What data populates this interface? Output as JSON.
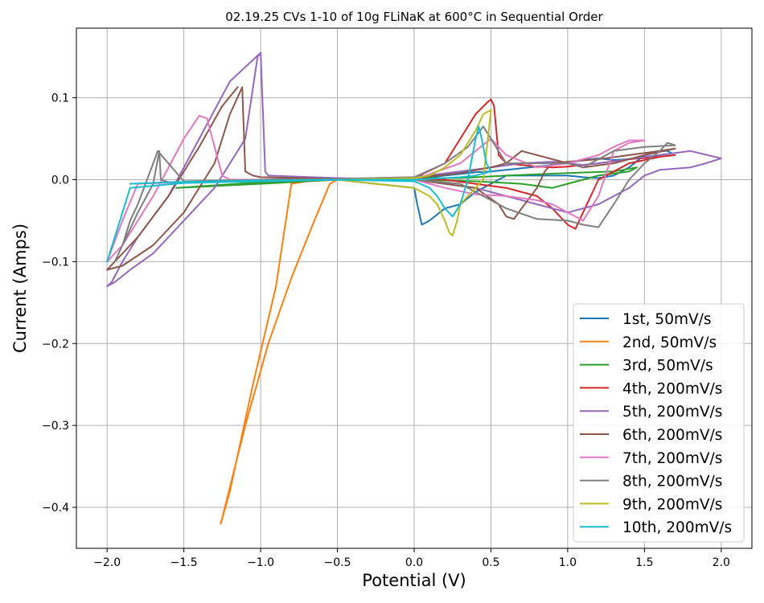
{
  "chart_data": {
    "type": "line",
    "title": "02.19.25 CVs 1-10 of 10g FLiNaK at 600°C in Sequential Order",
    "xlabel": "Potential (V)",
    "ylabel": "Current (Amps)",
    "xlim": [
      -2.2,
      2.2
    ],
    "ylim": [
      -0.45,
      0.185
    ],
    "xticks": [
      -2.0,
      -1.5,
      -1.0,
      -0.5,
      0.0,
      0.5,
      1.0,
      1.5,
      2.0
    ],
    "xtick_labels": [
      "−2.0",
      "−1.5",
      "−1.0",
      "−0.5",
      "0.0",
      "0.5",
      "1.0",
      "1.5",
      "2.0"
    ],
    "yticks": [
      0.1,
      0.0,
      -0.1,
      -0.2,
      -0.3,
      -0.4
    ],
    "ytick_labels": [
      "0.1",
      "0.0",
      "−0.1",
      "−0.2",
      "−0.3",
      "−0.4"
    ],
    "grid": true,
    "legend_position": "lower-right",
    "series": [
      {
        "name": "1st, 50mV/s",
        "color": "#1f77b4",
        "x": [
          -0.5,
          0.0,
          0.02,
          0.05,
          0.1,
          0.2,
          0.3,
          0.4,
          0.6,
          0.8,
          1.0,
          1.1,
          1.2,
          1.3,
          1.4,
          1.5,
          1.6,
          1.65,
          1.68,
          1.6,
          1.5,
          1.4,
          1.3,
          1.2,
          1.1,
          1.0,
          0.9,
          0.8,
          0.7,
          0.6,
          0.5,
          0.4,
          0.3,
          0.2,
          0.1,
          0.0,
          -0.3,
          -0.5
        ],
        "y": [
          0.0,
          -0.01,
          -0.03,
          -0.055,
          -0.05,
          -0.035,
          -0.03,
          -0.015,
          0.005,
          0.005,
          0.005,
          0.003,
          0.002,
          0.005,
          0.015,
          0.03,
          0.035,
          0.035,
          0.032,
          0.03,
          0.028,
          0.025,
          0.024,
          0.026,
          0.024,
          0.02,
          0.018,
          0.016,
          0.014,
          0.012,
          0.01,
          0.009,
          0.007,
          0.005,
          0.003,
          0.002,
          0.001,
          0.0
        ]
      },
      {
        "name": "2nd, 50mV/s",
        "color": "#ff7f0e",
        "x": [
          -0.5,
          -0.55,
          -0.65,
          -0.8,
          -0.95,
          -1.1,
          -1.26,
          -1.2,
          -1.05,
          -0.9,
          -0.82,
          -0.8,
          -0.7,
          -0.5
        ],
        "y": [
          0.0,
          -0.005,
          -0.05,
          -0.12,
          -0.2,
          -0.3,
          -0.42,
          -0.38,
          -0.25,
          -0.13,
          -0.03,
          -0.005,
          -0.002,
          0.0
        ]
      },
      {
        "name": "3rd, 50mV/s",
        "color": "#2ca02c",
        "x": [
          -1.55,
          -1.0,
          -0.5,
          0.0,
          0.4,
          0.7,
          0.9,
          1.0,
          1.2,
          1.4,
          1.45,
          1.3,
          1.0,
          0.6,
          0.3,
          0.0,
          -0.5,
          -1.0,
          -1.55
        ],
        "y": [
          -0.01,
          -0.005,
          0.0,
          0.0,
          -0.002,
          -0.005,
          -0.01,
          -0.005,
          0.005,
          0.01,
          0.015,
          0.01,
          0.008,
          0.005,
          0.002,
          0.002,
          0.001,
          -0.003,
          -0.01
        ]
      },
      {
        "name": "4th, 200mV/s",
        "color": "#d62728",
        "x": [
          -1.0,
          -0.5,
          0.0,
          0.2,
          0.3,
          0.4,
          0.48,
          0.5,
          0.52,
          0.55,
          0.6,
          0.7,
          0.8,
          0.9,
          1.0,
          1.2,
          1.4,
          1.6,
          1.7,
          1.6,
          1.4,
          1.2,
          1.1,
          1.05,
          1.0,
          0.9,
          0.8,
          0.6,
          0.4,
          0.2,
          0.0,
          -0.5,
          -1.0
        ],
        "y": [
          0.0,
          0.001,
          0.002,
          0.02,
          0.05,
          0.08,
          0.095,
          0.098,
          0.09,
          0.03,
          0.02,
          0.018,
          0.016,
          0.015,
          0.016,
          0.02,
          0.025,
          0.028,
          0.03,
          0.028,
          0.02,
          0.0,
          -0.04,
          -0.06,
          -0.055,
          -0.035,
          -0.02,
          -0.01,
          -0.005,
          0.0,
          0.001,
          0.001,
          0.0
        ]
      },
      {
        "name": "5th, 200mV/s",
        "color": "#9467bd",
        "x": [
          -1.0,
          -1.2,
          -1.4,
          -1.6,
          -1.8,
          -1.9,
          -1.97,
          -2.0,
          -1.95,
          -1.85,
          -1.7,
          -1.5,
          -1.3,
          -1.1,
          -1.02,
          -1.0,
          -0.97,
          -0.95,
          -0.5,
          0.0,
          0.4,
          0.6,
          0.8,
          1.0,
          1.2,
          1.4,
          1.5,
          1.6,
          1.8,
          1.9,
          2.0,
          1.8,
          1.6,
          1.4,
          1.2,
          1.1,
          1.0,
          0.9,
          0.7,
          0.5,
          0.3,
          0.0,
          -0.5,
          -1.0
        ],
        "y": [
          0.155,
          0.12,
          0.05,
          -0.02,
          -0.07,
          -0.1,
          -0.125,
          -0.13,
          -0.125,
          -0.11,
          -0.09,
          -0.05,
          -0.01,
          0.05,
          0.15,
          0.155,
          0.01,
          0.005,
          0.002,
          0.0,
          -0.01,
          -0.02,
          -0.03,
          -0.04,
          -0.03,
          -0.01,
          0.005,
          0.012,
          0.015,
          0.02,
          0.026,
          0.035,
          0.03,
          0.025,
          0.02,
          0.018,
          0.02,
          0.022,
          0.02,
          0.015,
          0.01,
          0.003,
          0.001,
          0.0
        ]
      },
      {
        "name": "6th, 200mV/s",
        "color": "#8c564b",
        "x": [
          -1.15,
          -1.25,
          -1.4,
          -1.6,
          -1.8,
          -1.95,
          -2.0,
          -1.9,
          -1.7,
          -1.5,
          -1.3,
          -1.2,
          -1.12,
          -1.1,
          -1.05,
          -1.0,
          -0.5,
          0.0,
          0.4,
          0.55,
          0.6,
          0.65,
          0.7,
          0.8,
          0.85,
          0.9,
          1.0,
          1.2,
          1.4,
          1.6,
          1.7,
          1.5,
          1.3,
          1.1,
          0.9,
          0.7,
          0.6,
          0.5,
          0.3,
          0.0,
          -0.5,
          -1.0
        ],
        "y": [
          0.113,
          0.09,
          0.04,
          -0.02,
          -0.07,
          -0.1,
          -0.11,
          -0.105,
          -0.08,
          -0.04,
          0.02,
          0.08,
          0.113,
          0.01,
          0.005,
          0.003,
          0.001,
          0.0,
          -0.01,
          -0.03,
          -0.045,
          -0.048,
          -0.035,
          -0.01,
          0.01,
          0.02,
          0.022,
          0.025,
          0.03,
          0.035,
          0.038,
          0.03,
          0.02,
          0.015,
          0.025,
          0.035,
          0.02,
          0.015,
          0.008,
          0.002,
          0.001,
          0.0
        ]
      },
      {
        "name": "7th, 200mV/s",
        "color": "#e377c2",
        "x": [
          -1.4,
          -1.35,
          -1.3,
          -1.25,
          -1.2,
          -1.0,
          -0.5,
          0.0,
          0.3,
          0.4,
          0.5,
          0.6,
          0.8,
          1.0,
          1.2,
          1.3,
          1.4,
          1.5,
          1.4,
          1.3,
          1.2,
          1.1,
          1.0,
          0.9,
          0.8,
          0.6,
          0.4,
          0.2,
          0.0,
          -0.5,
          -1.0,
          -1.5,
          -1.8,
          -1.9,
          -2.0,
          -1.9,
          -1.7,
          -1.5,
          -1.4
        ],
        "y": [
          0.078,
          0.075,
          0.04,
          0.005,
          0.0,
          0.0,
          0.0,
          0.0,
          0.02,
          0.035,
          0.05,
          0.03,
          0.015,
          0.02,
          0.03,
          0.04,
          0.048,
          0.048,
          0.045,
          0.035,
          -0.02,
          -0.05,
          -0.04,
          -0.03,
          -0.025,
          -0.02,
          -0.018,
          -0.01,
          0.0,
          0.0,
          -0.002,
          -0.003,
          -0.005,
          -0.05,
          -0.1,
          -0.08,
          -0.02,
          0.05,
          0.078
        ]
      },
      {
        "name": "8th, 200mV/s",
        "color": "#7f7f7f",
        "x": [
          -1.67,
          -1.7,
          -1.75,
          -1.8,
          -1.85,
          -1.9,
          -1.95,
          -1.9,
          -1.8,
          -1.7,
          -1.66,
          -1.65,
          -1.6,
          -1.0,
          -0.5,
          0.0,
          0.3,
          0.45,
          0.6,
          0.8,
          1.0,
          1.1,
          1.2,
          1.3,
          1.4,
          1.5,
          1.6,
          1.65,
          1.7,
          1.5,
          1.3,
          1.1,
          1.0,
          0.8,
          0.6,
          0.45,
          0.35,
          0.2,
          0.0,
          -0.5,
          -1.0,
          -1.5,
          -1.67
        ],
        "y": [
          0.035,
          0.02,
          -0.005,
          -0.03,
          -0.05,
          -0.08,
          -0.1,
          -0.08,
          -0.04,
          -0.005,
          0.035,
          0.0,
          -0.003,
          -0.002,
          0.0,
          0.0,
          -0.005,
          -0.02,
          -0.035,
          -0.048,
          -0.05,
          -0.055,
          -0.058,
          -0.03,
          0.0,
          0.02,
          0.035,
          0.045,
          0.042,
          0.04,
          0.035,
          0.015,
          0.02,
          0.02,
          0.02,
          0.065,
          0.04,
          0.02,
          0.003,
          0.001,
          0.0,
          -0.002,
          0.035
        ]
      },
      {
        "name": "9th, 200mV/s",
        "color": "#bcbd22",
        "x": [
          -0.5,
          0.0,
          0.1,
          0.15,
          0.2,
          0.23,
          0.25,
          0.28,
          0.3,
          0.4,
          0.45,
          0.48,
          0.5,
          0.45,
          0.4,
          0.3,
          0.2,
          0.1,
          0.0,
          -0.5
        ],
        "y": [
          0.0,
          -0.01,
          -0.02,
          -0.03,
          -0.05,
          -0.065,
          -0.068,
          -0.05,
          -0.03,
          -0.01,
          0.0,
          0.05,
          0.085,
          0.08,
          0.06,
          0.03,
          0.015,
          0.005,
          0.002,
          0.0
        ]
      },
      {
        "name": "10th, 200mV/s",
        "color": "#17becf",
        "x": [
          -1.85,
          -1.6,
          -1.0,
          -0.5,
          0.0,
          0.1,
          0.15,
          0.2,
          0.25,
          0.3,
          0.35,
          0.4,
          0.42,
          0.44,
          0.47,
          0.5,
          0.4,
          0.3,
          0.2,
          0.1,
          0.0,
          -0.5,
          -1.0,
          -1.5,
          -1.85,
          -2.0
        ],
        "y": [
          -0.005,
          -0.003,
          -0.001,
          0.0,
          -0.002,
          -0.01,
          -0.02,
          -0.035,
          -0.045,
          -0.03,
          0.0,
          0.05,
          0.065,
          0.05,
          0.02,
          0.01,
          0.005,
          0.003,
          0.002,
          0.001,
          0.0,
          0.0,
          -0.002,
          -0.004,
          -0.01,
          -0.1
        ]
      }
    ]
  }
}
